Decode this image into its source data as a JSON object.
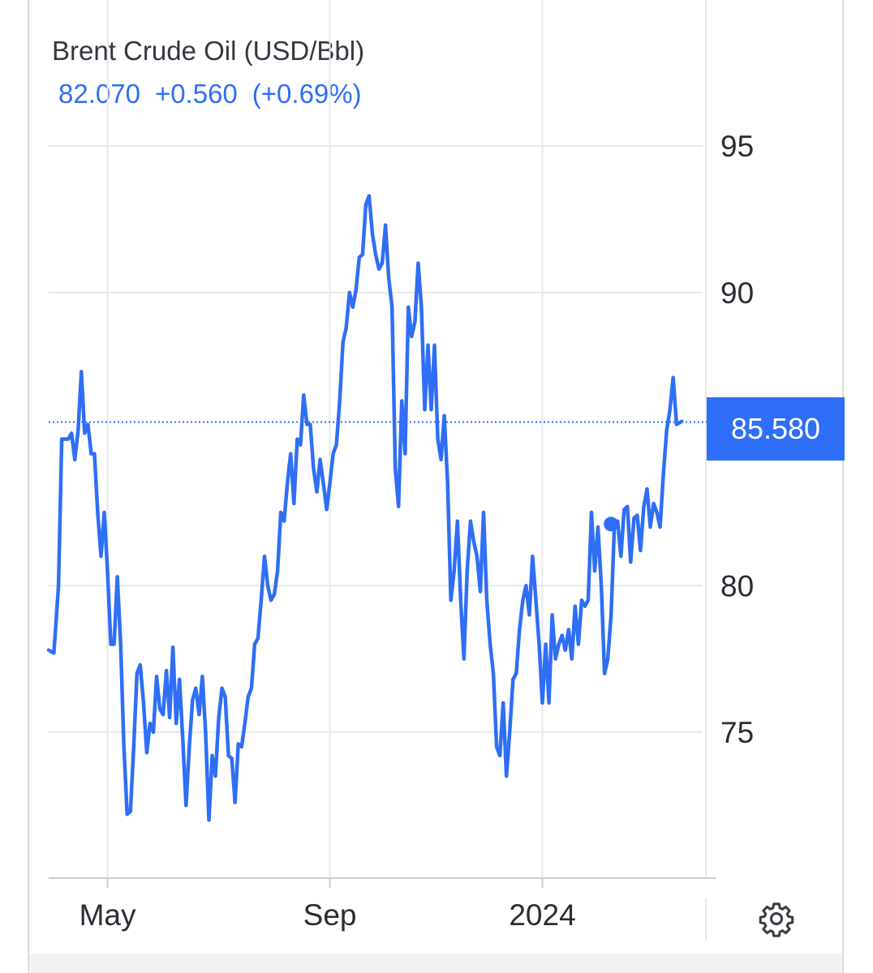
{
  "header": {
    "title": "Brent Crude Oil (USD/Bbl)",
    "price": "82.070",
    "change": "+0.560",
    "change_pct": "(+0.69%)"
  },
  "price_tag": {
    "label": "85.580"
  },
  "settings": {
    "icon": "gear-icon"
  },
  "colors": {
    "accent": "#2f6ef6",
    "grid": "#e6e8ec",
    "text": "#2a2d33"
  },
  "chart_data": {
    "type": "line",
    "title": "Brent Crude Oil (USD/Bbl)",
    "xlabel": "",
    "ylabel": "",
    "ylim": [
      69.5,
      96
    ],
    "xlim": [
      0,
      100
    ],
    "y_ticks": [
      95,
      90,
      80,
      75
    ],
    "x_ticks": [
      {
        "label": "May",
        "x": 9
      },
      {
        "label": "Sep",
        "x": 43
      },
      {
        "label": "2024",
        "x": 75.5
      }
    ],
    "reference_line": 85.58,
    "grid": true,
    "marker": {
      "x": 86,
      "y": 82.1
    },
    "series": [
      {
        "values": [
          [
            0,
            77.8
          ],
          [
            0.8,
            77.7
          ],
          [
            1.5,
            80
          ],
          [
            2,
            85
          ],
          [
            2.5,
            85
          ],
          [
            3,
            85
          ],
          [
            3.5,
            85.2
          ],
          [
            4,
            84.3
          ],
          [
            4.5,
            85.3
          ],
          [
            5,
            87.3
          ],
          [
            5.5,
            85.2
          ],
          [
            6,
            85.5
          ],
          [
            6.5,
            84.5
          ],
          [
            7,
            84.5
          ],
          [
            7.5,
            82.5
          ],
          [
            8,
            81
          ],
          [
            8.5,
            82.5
          ],
          [
            9,
            80.5
          ],
          [
            9.5,
            78
          ],
          [
            10,
            78
          ],
          [
            10.5,
            80.3
          ],
          [
            11,
            78
          ],
          [
            11.5,
            74.5
          ],
          [
            12,
            72.2
          ],
          [
            12.5,
            72.3
          ],
          [
            13,
            74.5
          ],
          [
            13.5,
            77
          ],
          [
            14,
            77.3
          ],
          [
            14.5,
            76
          ],
          [
            15,
            74.3
          ],
          [
            15.5,
            75.3
          ],
          [
            16,
            75
          ],
          [
            16.5,
            76.9
          ],
          [
            17,
            75.8
          ],
          [
            17.5,
            75.6
          ],
          [
            18,
            77.1
          ],
          [
            18.5,
            75.5
          ],
          [
            19,
            77.9
          ],
          [
            19.5,
            75.3
          ],
          [
            20,
            76.8
          ],
          [
            20.5,
            74.8
          ],
          [
            21,
            72.5
          ],
          [
            21.5,
            74.5
          ],
          [
            22,
            76.1
          ],
          [
            22.5,
            76.5
          ],
          [
            23,
            75.6
          ],
          [
            23.5,
            76.9
          ],
          [
            24,
            75
          ],
          [
            24.5,
            72
          ],
          [
            25,
            74.2
          ],
          [
            25.5,
            73.5
          ],
          [
            26,
            75.5
          ],
          [
            26.5,
            76.5
          ],
          [
            27,
            76.2
          ],
          [
            27.5,
            74.2
          ],
          [
            28,
            74.1
          ],
          [
            28.5,
            72.6
          ],
          [
            29,
            74.6
          ],
          [
            29.5,
            74.5
          ],
          [
            30,
            75.3
          ],
          [
            30.5,
            76.2
          ],
          [
            31,
            76.5
          ],
          [
            31.5,
            78
          ],
          [
            32,
            78.2
          ],
          [
            32.5,
            79.5
          ],
          [
            33,
            81
          ],
          [
            33.5,
            80
          ],
          [
            34,
            79.5
          ],
          [
            34.5,
            79.7
          ],
          [
            35,
            80.5
          ],
          [
            35.5,
            82.5
          ],
          [
            36,
            82.2
          ],
          [
            36.5,
            83.5
          ],
          [
            37,
            84.5
          ],
          [
            37.5,
            82.8
          ],
          [
            38,
            85
          ],
          [
            38.5,
            84.8
          ],
          [
            39,
            86.5
          ],
          [
            39.5,
            85.5
          ],
          [
            40,
            85.5
          ],
          [
            40.5,
            84
          ],
          [
            41,
            83.2
          ],
          [
            41.5,
            84.3
          ],
          [
            42,
            83.5
          ],
          [
            42.5,
            82.6
          ],
          [
            43,
            83.5
          ],
          [
            43.5,
            84.5
          ],
          [
            44,
            84.8
          ],
          [
            44.5,
            86.3
          ],
          [
            45,
            88.3
          ],
          [
            45.5,
            88.8
          ],
          [
            46,
            90
          ],
          [
            46.5,
            89.5
          ],
          [
            47,
            90.1
          ],
          [
            47.5,
            91.2
          ],
          [
            48,
            91.3
          ],
          [
            48.5,
            93
          ],
          [
            49,
            93.3
          ],
          [
            49.5,
            92
          ],
          [
            50,
            91.3
          ],
          [
            50.5,
            90.8
          ],
          [
            51,
            91
          ],
          [
            51.5,
            92.3
          ],
          [
            52,
            90.5
          ],
          [
            52.5,
            89.5
          ],
          [
            53,
            84
          ],
          [
            53.5,
            82.7
          ],
          [
            54,
            86.3
          ],
          [
            54.5,
            84.5
          ],
          [
            55,
            89.5
          ],
          [
            55.5,
            88.5
          ],
          [
            56,
            89
          ],
          [
            56.5,
            91
          ],
          [
            57,
            89.5
          ],
          [
            57.5,
            86
          ],
          [
            58,
            88.2
          ],
          [
            58.5,
            86
          ],
          [
            59,
            88.2
          ],
          [
            59.5,
            85
          ],
          [
            60,
            84.3
          ],
          [
            60.5,
            85.8
          ],
          [
            61,
            83.5
          ],
          [
            61.5,
            79.5
          ],
          [
            62,
            80.5
          ],
          [
            62.5,
            82.2
          ],
          [
            63,
            79.5
          ],
          [
            63.5,
            77.5
          ],
          [
            64,
            80.5
          ],
          [
            64.5,
            82.2
          ],
          [
            65,
            81.5
          ],
          [
            65.5,
            81
          ],
          [
            66,
            79.8
          ],
          [
            66.5,
            82.5
          ],
          [
            67,
            79.5
          ],
          [
            67.5,
            78
          ],
          [
            68,
            77
          ],
          [
            68.5,
            74.5
          ],
          [
            69,
            74.2
          ],
          [
            69.5,
            76
          ],
          [
            70,
            73.5
          ],
          [
            70.5,
            75
          ],
          [
            71,
            76.8
          ],
          [
            71.5,
            77
          ],
          [
            72,
            78.5
          ],
          [
            72.5,
            79.5
          ],
          [
            73,
            80
          ],
          [
            73.5,
            79
          ],
          [
            74,
            81
          ],
          [
            74.5,
            79.5
          ],
          [
            75,
            78
          ],
          [
            75.5,
            76
          ],
          [
            76,
            78
          ],
          [
            76.5,
            76
          ],
          [
            77,
            79
          ],
          [
            77.5,
            77.5
          ],
          [
            78,
            78
          ],
          [
            78.5,
            78.3
          ],
          [
            79,
            77.8
          ],
          [
            79.5,
            78.5
          ],
          [
            80,
            77.5
          ],
          [
            80.5,
            79.3
          ],
          [
            81,
            78
          ],
          [
            81.5,
            79.5
          ],
          [
            82,
            79.3
          ],
          [
            82.5,
            79.5
          ],
          [
            83,
            82.5
          ],
          [
            83.5,
            80.5
          ],
          [
            84,
            82
          ],
          [
            84.5,
            80
          ],
          [
            85,
            77
          ],
          [
            85.5,
            77.5
          ],
          [
            86,
            79
          ],
          [
            86.5,
            82
          ],
          [
            87,
            82.2
          ],
          [
            87.5,
            81
          ],
          [
            88,
            82.6
          ],
          [
            88.5,
            82.7
          ],
          [
            89,
            80.8
          ],
          [
            89.5,
            82.3
          ],
          [
            90,
            82.4
          ],
          [
            90.5,
            81.2
          ],
          [
            91,
            82.7
          ],
          [
            91.5,
            83.3
          ],
          [
            92,
            82
          ],
          [
            92.5,
            82.8
          ],
          [
            93,
            82.5
          ],
          [
            93.5,
            82
          ],
          [
            94,
            83.8
          ],
          [
            94.5,
            85.3
          ],
          [
            95,
            86
          ],
          [
            95.5,
            87.1
          ],
          [
            96,
            85.5
          ],
          [
            96.8,
            85.6
          ]
        ]
      }
    ]
  }
}
